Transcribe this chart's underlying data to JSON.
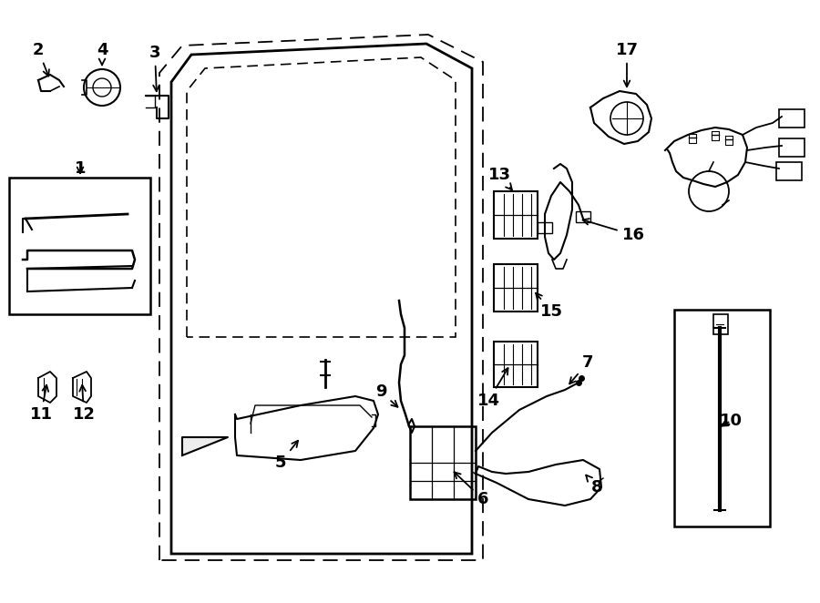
{
  "bg_color": "#ffffff",
  "line_color": "#000000",
  "figsize": [
    9.0,
    6.62
  ],
  "dpi": 100
}
